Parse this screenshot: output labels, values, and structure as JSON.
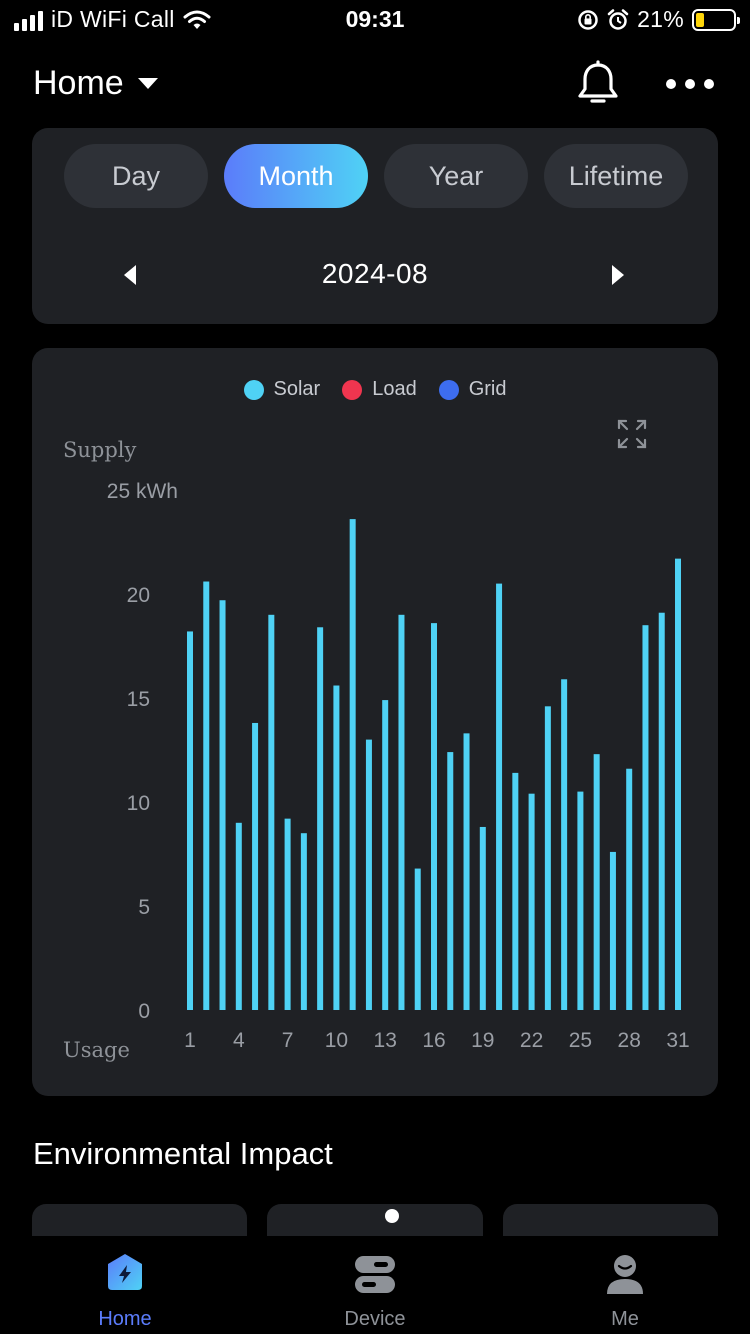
{
  "status_bar": {
    "carrier": "iD WiFi Call",
    "time": "09:31",
    "battery": "21%",
    "battery_level": 0.21,
    "battery_color": "#ffd60a"
  },
  "header": {
    "title": "Home",
    "icons": [
      "chevron-down-icon",
      "bell-icon",
      "more-icon"
    ]
  },
  "period": {
    "tabs": [
      "Day",
      "Month",
      "Year",
      "Lifetime"
    ],
    "active_tab": "Month",
    "date": "2024-08",
    "accent_gradient": [
      "#5b7cfa",
      "#4fd2f5"
    ]
  },
  "chart": {
    "supply_label": "Supply",
    "usage_label": "Usage",
    "unit": "kWh"
  },
  "chart_data": {
    "type": "bar",
    "legend": [
      {
        "name": "Solar",
        "color": "#4fd2f5"
      },
      {
        "name": "Load",
        "color": "#f0354f"
      },
      {
        "name": "Grid",
        "color": "#3d6df0"
      }
    ],
    "ylabel": "Supply",
    "ylim": [
      0,
      25
    ],
    "y_ticks": [
      "0",
      "5",
      "10",
      "15",
      "20",
      "25 kWh"
    ],
    "y_tick_values": [
      0,
      5,
      10,
      15,
      20,
      25
    ],
    "x_ticks": [
      "1",
      "4",
      "7",
      "10",
      "13",
      "16",
      "19",
      "22",
      "25",
      "28",
      "31"
    ],
    "x_tick_values": [
      1,
      4,
      7,
      10,
      13,
      16,
      19,
      22,
      25,
      28,
      31
    ],
    "categories": [
      1,
      2,
      3,
      4,
      5,
      6,
      7,
      8,
      9,
      10,
      11,
      12,
      13,
      14,
      15,
      16,
      17,
      18,
      19,
      20,
      21,
      22,
      23,
      24,
      25,
      26,
      27,
      28,
      29,
      30,
      31
    ],
    "series": [
      {
        "name": "Solar",
        "color": "#4fd2f5",
        "values": [
          18.2,
          20.6,
          19.7,
          9.0,
          13.8,
          19.0,
          9.2,
          8.5,
          18.4,
          15.6,
          23.6,
          13.0,
          14.9,
          19.0,
          6.8,
          18.6,
          12.4,
          13.3,
          8.8,
          20.5,
          11.4,
          10.4,
          14.6,
          15.9,
          10.5,
          12.3,
          7.6,
          11.6,
          18.5,
          19.1,
          21.7
        ]
      }
    ],
    "grid": false
  },
  "environment": {
    "title": "Environmental Impact"
  },
  "tabbar": {
    "items": [
      {
        "label": "Home",
        "icon": "home-bolt-icon",
        "active": true
      },
      {
        "label": "Device",
        "icon": "device-icon",
        "active": false
      },
      {
        "label": "Me",
        "icon": "profile-icon",
        "active": false
      }
    ],
    "active_color": "#5b7cfa"
  }
}
